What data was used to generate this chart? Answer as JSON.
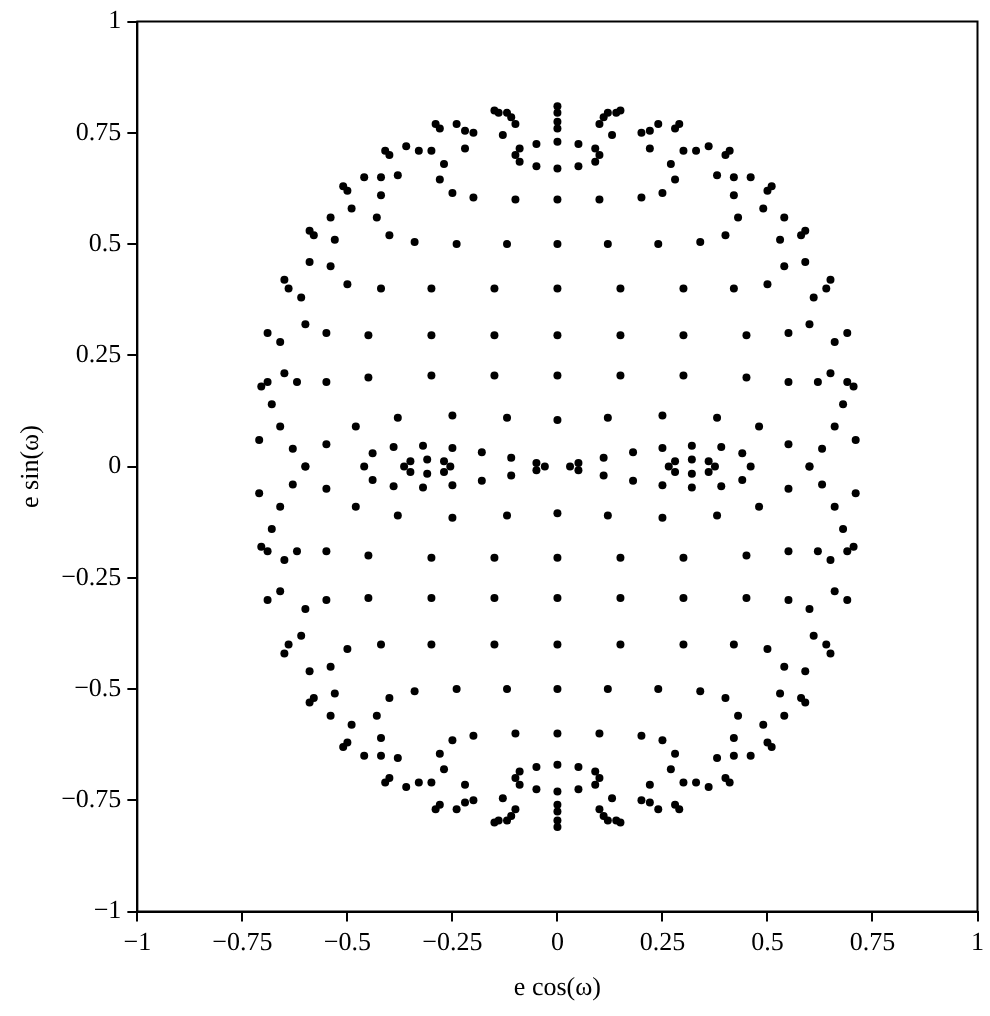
{
  "chart_data": {
    "type": "scatter",
    "xlabel": "e cos(ω)",
    "ylabel": "e sin(ω)",
    "xlim": [
      -1,
      1
    ],
    "ylim": [
      -1,
      1
    ],
    "xticks": [
      -1,
      -0.75,
      -0.5,
      -0.25,
      0,
      0.25,
      0.5,
      0.75,
      1
    ],
    "yticks": [
      -1,
      -0.75,
      -0.5,
      -0.25,
      0,
      0.25,
      0.5,
      0.75,
      1
    ],
    "grid": false,
    "legend": false,
    "marker": "circle",
    "series": [
      {
        "color": "#000000",
        "x": [
          0,
          0.15,
          0.29,
          0.41,
          0.51,
          0.59,
          0.65,
          0.69,
          0.705,
          0.71,
          0.71,
          0.705,
          0.69,
          0.65,
          0.59,
          0.51,
          0.41,
          0.29,
          0.15,
          0,
          -0.15,
          -0.29,
          -0.41,
          -0.51,
          -0.59,
          -0.65,
          -0.69,
          -0.705,
          -0.71,
          -0.71,
          -0.705,
          -0.69,
          -0.65,
          -0.59,
          -0.51,
          -0.41,
          -0.29,
          -0.15
        ],
        "values": [
          0.81,
          0.8,
          0.77,
          0.71,
          0.63,
          0.53,
          0.42,
          0.3,
          0.18,
          0.06,
          -0.06,
          -0.18,
          -0.3,
          -0.42,
          -0.53,
          -0.63,
          -0.71,
          -0.77,
          -0.8,
          -0.81,
          -0.8,
          -0.77,
          -0.71,
          -0.63,
          -0.53,
          -0.42,
          -0.3,
          -0.18,
          -0.06,
          0.06,
          0.18,
          0.3,
          0.42,
          0.53,
          0.63,
          0.71,
          0.77,
          0.8
        ]
      },
      {
        "color": "#000000",
        "x": [
          0,
          0.05,
          0.09,
          0.1,
          0.09,
          0.05,
          0,
          -0.05,
          -0.09,
          -0.1,
          -0.09,
          -0.05
        ],
        "values": [
          0.73,
          0.725,
          0.715,
          0.7,
          0.685,
          0.675,
          0.67,
          0.675,
          0.685,
          0.7,
          0.715,
          0.725
        ]
      },
      {
        "color": "#000000",
        "x": [
          0,
          0.05,
          0.09,
          0.1,
          0.09,
          0.05,
          0,
          -0.05,
          -0.09,
          -0.1,
          -0.09,
          -0.05
        ],
        "values": [
          -0.73,
          -0.725,
          -0.715,
          -0.7,
          -0.685,
          -0.675,
          -0.67,
          -0.675,
          -0.685,
          -0.7,
          -0.715,
          -0.725
        ]
      },
      {
        "color": "#000000",
        "x": [
          0,
          0.1,
          0.2,
          0.25,
          0.28,
          0.27,
          0.22,
          0.13,
          0,
          -0.13,
          -0.22,
          -0.27,
          -0.28,
          -0.25,
          -0.2,
          -0.1
        ],
        "values": [
          0.6,
          0.6,
          0.605,
          0.615,
          0.645,
          0.68,
          0.715,
          0.745,
          0.76,
          0.745,
          0.715,
          0.68,
          0.645,
          0.615,
          0.605,
          0.6
        ]
      },
      {
        "color": "#000000",
        "x": [
          0,
          0.1,
          0.2,
          0.25,
          0.28,
          0.27,
          0.22,
          0.13,
          0,
          -0.13,
          -0.22,
          -0.27,
          -0.28,
          -0.25,
          -0.2,
          -0.1
        ],
        "values": [
          -0.6,
          -0.6,
          -0.605,
          -0.615,
          -0.645,
          -0.68,
          -0.715,
          -0.745,
          -0.76,
          -0.745,
          -0.715,
          -0.68,
          -0.645,
          -0.615,
          -0.605,
          -0.6
        ]
      },
      {
        "color": "#000000",
        "x": [
          0,
          0.12,
          0.24,
          0.34,
          0.4,
          0.43,
          0.42,
          0.38,
          0.3,
          0.2,
          0.1,
          0,
          -0.1,
          -0.2,
          -0.3,
          -0.38,
          -0.42,
          -0.43,
          -0.4,
          -0.34,
          -0.24,
          -0.12
        ],
        "values": [
          0.5,
          0.5,
          0.5,
          0.505,
          0.52,
          0.56,
          0.61,
          0.655,
          0.71,
          0.75,
          0.77,
          0.775,
          0.77,
          0.75,
          0.71,
          0.655,
          0.61,
          0.56,
          0.52,
          0.505,
          0.5,
          0.5
        ]
      },
      {
        "color": "#000000",
        "x": [
          0,
          0.12,
          0.24,
          0.34,
          0.4,
          0.43,
          0.42,
          0.38,
          0.3,
          0.2,
          0.1,
          0,
          -0.1,
          -0.2,
          -0.3,
          -0.38,
          -0.42,
          -0.43,
          -0.4,
          -0.34,
          -0.24,
          -0.12
        ],
        "values": [
          -0.5,
          -0.5,
          -0.5,
          -0.505,
          -0.52,
          -0.56,
          -0.61,
          -0.655,
          -0.71,
          -0.75,
          -0.77,
          -0.775,
          -0.77,
          -0.75,
          -0.71,
          -0.655,
          -0.61,
          -0.56,
          -0.52,
          -0.505,
          -0.5,
          -0.5
        ]
      },
      {
        "color": "#000000",
        "x": [
          0,
          0.15,
          0.3,
          0.42,
          0.5,
          0.54,
          0.53,
          0.49,
          0.42,
          0.33,
          0.22,
          0.11,
          0,
          -0.11,
          -0.22,
          -0.33,
          -0.42,
          -0.49,
          -0.53,
          -0.54,
          -0.5,
          -0.42,
          -0.3,
          -0.15
        ],
        "values": [
          0.4,
          0.4,
          0.4,
          0.4,
          0.41,
          0.45,
          0.51,
          0.58,
          0.65,
          0.71,
          0.755,
          0.785,
          0.795,
          0.785,
          0.755,
          0.71,
          0.65,
          0.58,
          0.51,
          0.45,
          0.41,
          0.4,
          0.4,
          0.4
        ]
      },
      {
        "color": "#000000",
        "x": [
          0,
          0.15,
          0.3,
          0.42,
          0.5,
          0.54,
          0.53,
          0.49,
          0.42,
          0.33,
          0.22,
          0.11,
          0,
          -0.11,
          -0.22,
          -0.33,
          -0.42,
          -0.49,
          -0.53,
          -0.54,
          -0.5,
          -0.42,
          -0.3,
          -0.15
        ],
        "values": [
          -0.4,
          -0.4,
          -0.4,
          -0.4,
          -0.41,
          -0.45,
          -0.51,
          -0.58,
          -0.65,
          -0.71,
          -0.755,
          -0.785,
          -0.795,
          -0.785,
          -0.755,
          -0.71,
          -0.65,
          -0.58,
          -0.51,
          -0.45,
          -0.41,
          -0.4,
          -0.4,
          -0.4
        ]
      },
      {
        "color": "#000000",
        "x": [
          0,
          0.15,
          0.3,
          0.45,
          0.55,
          0.6,
          0.61,
          0.59,
          0.54,
          0.46,
          0.36,
          0.24,
          0.12,
          0,
          -0.12,
          -0.24,
          -0.36,
          -0.46,
          -0.54,
          -0.59,
          -0.61,
          -0.6,
          -0.55,
          -0.45,
          -0.3,
          -0.15
        ],
        "values": [
          0.295,
          0.295,
          0.295,
          0.295,
          0.3,
          0.32,
          0.38,
          0.46,
          0.56,
          0.65,
          0.72,
          0.77,
          0.795,
          null,
          0.795,
          0.77,
          0.72,
          0.65,
          0.56,
          0.46,
          0.38,
          0.32,
          0.3,
          0.295,
          0.295,
          0.295
        ]
      },
      {
        "color": "#000000",
        "x": [
          0,
          0.15,
          0.3,
          0.45,
          0.55,
          0.6,
          0.61,
          0.59,
          0.54,
          0.46,
          0.36,
          0.24,
          0.12,
          0,
          -0.12,
          -0.24,
          -0.36,
          -0.46,
          -0.54,
          -0.59,
          -0.61,
          -0.6,
          -0.55,
          -0.45,
          -0.3,
          -0.15
        ],
        "values": [
          -0.295,
          -0.295,
          -0.295,
          -0.295,
          -0.3,
          -0.32,
          -0.38,
          -0.46,
          -0.56,
          -0.65,
          -0.72,
          -0.77,
          -0.795,
          null,
          -0.795,
          -0.77,
          -0.72,
          -0.65,
          -0.56,
          -0.46,
          -0.38,
          -0.32,
          -0.3,
          -0.295,
          -0.295,
          -0.295
        ]
      },
      {
        "color": "#000000",
        "x": [
          0,
          0.15,
          0.3,
          0.45,
          0.55,
          0.62,
          0.65,
          0.66,
          0.64,
          0.58,
          0.5,
          0.4,
          0.28,
          0.14,
          0,
          -0.14,
          -0.28,
          -0.4,
          -0.5,
          -0.58,
          -0.64,
          -0.66,
          -0.65,
          -0.62,
          -0.55,
          -0.45,
          -0.3,
          -0.15
        ],
        "values": [
          0.205,
          0.205,
          0.205,
          0.2,
          0.19,
          0.19,
          0.21,
          0.28,
          0.4,
          0.52,
          0.62,
          0.7,
          0.76,
          0.795,
          null,
          0.795,
          0.76,
          0.7,
          0.62,
          0.52,
          0.4,
          0.28,
          0.21,
          0.19,
          0.19,
          0.2,
          0.205,
          0.205
        ]
      },
      {
        "color": "#000000",
        "x": [
          0,
          0.15,
          0.3,
          0.45,
          0.55,
          0.62,
          0.65,
          0.66,
          0.64,
          0.58,
          0.5,
          0.4,
          0.28,
          0.14,
          0,
          -0.14,
          -0.28,
          -0.4,
          -0.5,
          -0.58,
          -0.64,
          -0.66,
          -0.65,
          -0.62,
          -0.55,
          -0.45,
          -0.3,
          -0.15
        ],
        "values": [
          -0.205,
          -0.205,
          -0.205,
          -0.2,
          -0.19,
          -0.19,
          -0.21,
          -0.28,
          -0.4,
          -0.52,
          -0.62,
          -0.7,
          -0.76,
          -0.795,
          null,
          -0.795,
          -0.76,
          -0.7,
          -0.62,
          -0.52,
          -0.4,
          -0.28,
          -0.21,
          -0.19,
          -0.19,
          -0.2,
          -0.205,
          -0.205
        ]
      },
      {
        "color": "#000000",
        "x": [
          -0.6,
          -0.55,
          -0.48,
          -0.38,
          -0.25,
          -0.12,
          0,
          0.12,
          0.25,
          0.38,
          0.48,
          0.55,
          0.6,
          0.55,
          0.48,
          0.38,
          0.25,
          0.12,
          0,
          -0.12,
          -0.25,
          -0.38,
          -0.48,
          -0.55
        ],
        "values": [
          0,
          0.05,
          0.09,
          0.11,
          0.115,
          0.11,
          0.105,
          0.11,
          0.115,
          0.11,
          0.09,
          0.05,
          0,
          -0.05,
          -0.09,
          -0.11,
          -0.115,
          -0.11,
          -0.105,
          -0.11,
          -0.115,
          -0.11,
          -0.09,
          -0.05
        ]
      },
      {
        "color": "#000000",
        "x": [
          -0.69,
          -0.68,
          -0.66,
          -0.63,
          -0.6,
          -0.63,
          -0.66,
          -0.68,
          -0.69
        ],
        "values": [
          0.19,
          0.14,
          0.09,
          0.04,
          0,
          -0.04,
          -0.09,
          -0.14,
          -0.19
        ]
      },
      {
        "color": "#000000",
        "x": [
          0.69,
          0.68,
          0.66,
          0.63,
          0.6,
          0.63,
          0.66,
          0.68,
          0.69
        ],
        "values": [
          0.19,
          0.14,
          0.09,
          0.04,
          0,
          -0.04,
          -0.09,
          -0.14,
          -0.19
        ]
      },
      {
        "color": "#000000",
        "x": [
          -0.46,
          -0.44,
          -0.39,
          -0.32,
          -0.25,
          -0.18,
          -0.11,
          -0.05,
          -0.03,
          -0.05,
          -0.11,
          -0.18,
          -0.25,
          -0.32,
          -0.39,
          -0.44
        ],
        "values": [
          0,
          0.03,
          0.044,
          0.047,
          0.042,
          0.032,
          0.02,
          0.008,
          0,
          -0.008,
          -0.02,
          -0.032,
          -0.042,
          -0.047,
          -0.044,
          -0.03
        ]
      },
      {
        "color": "#000000",
        "x": [
          0.46,
          0.44,
          0.39,
          0.32,
          0.25,
          0.18,
          0.11,
          0.05,
          0.03,
          0.05,
          0.11,
          0.18,
          0.25,
          0.32,
          0.39,
          0.44
        ],
        "values": [
          0,
          0.03,
          0.044,
          0.047,
          0.042,
          0.032,
          0.02,
          0.008,
          0,
          -0.008,
          -0.02,
          -0.032,
          -0.042,
          -0.047,
          -0.044,
          -0.03
        ]
      },
      {
        "color": "#000000",
        "x": [
          -0.365,
          -0.35,
          -0.31,
          -0.27,
          -0.255,
          -0.27,
          -0.31,
          -0.35
        ],
        "values": [
          0,
          0.012,
          0.016,
          0.012,
          0,
          -0.012,
          -0.016,
          -0.012
        ]
      },
      {
        "color": "#000000",
        "x": [
          0.375,
          0.36,
          0.32,
          0.28,
          0.265,
          0.28,
          0.32,
          0.36
        ],
        "values": [
          0,
          0.012,
          0.016,
          0.012,
          0,
          -0.012,
          -0.016,
          -0.012
        ]
      }
    ]
  }
}
